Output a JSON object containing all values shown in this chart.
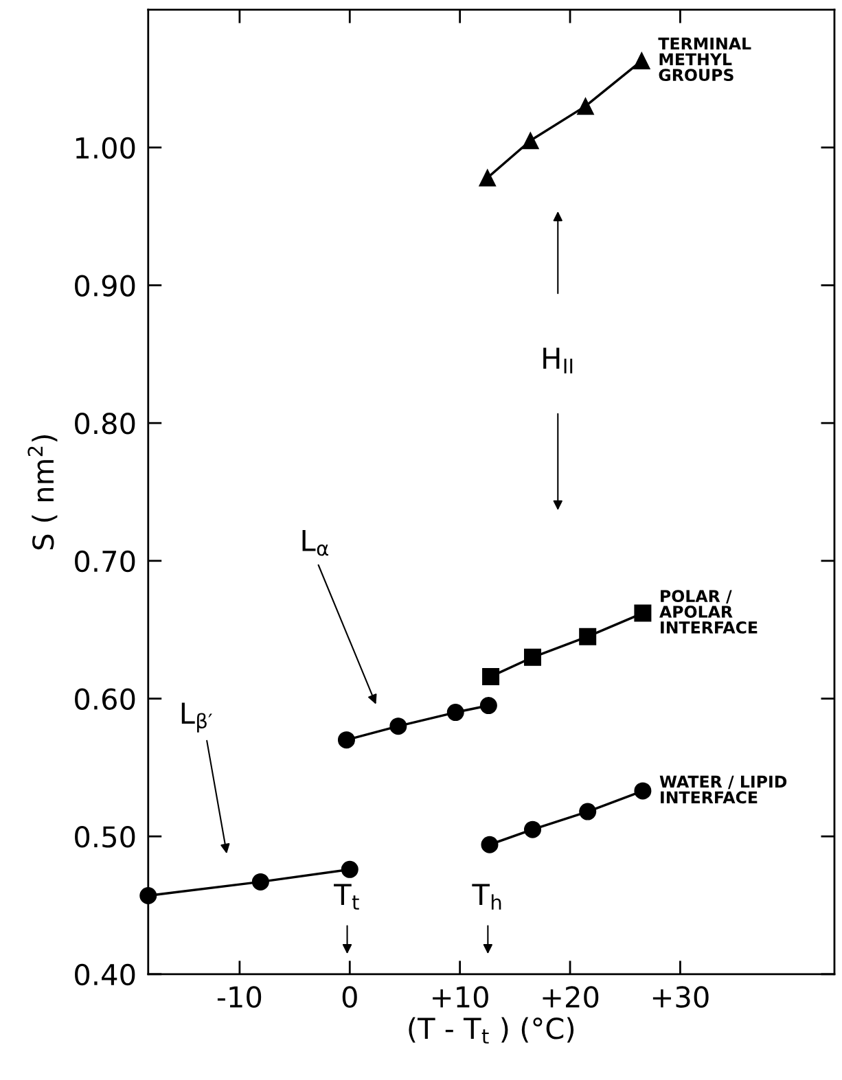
{
  "chart_data": {
    "type": "line",
    "xlabel": "(T - T$_{t}$ ) (°C)",
    "ylabel": "S ( nm$^{2}$)",
    "xlim": [
      -18.3,
      44
    ],
    "ylim": [
      0.4,
      1.1
    ],
    "xticks": [
      {
        "value": -10,
        "label": "-10"
      },
      0,
      {
        "value": 10,
        "label": "+10"
      },
      {
        "value": 20,
        "label": "+20"
      },
      {
        "value": 30,
        "label": "+30"
      }
    ],
    "yticks": [
      {
        "value": 0.4,
        "label": "0.40"
      },
      {
        "value": 0.5,
        "label": "0.50"
      },
      {
        "value": 0.6,
        "label": "0.60"
      },
      {
        "value": 0.7,
        "label": "0.70"
      },
      {
        "value": 0.8,
        "label": "0.80"
      },
      {
        "value": 0.9,
        "label": "0.90"
      },
      {
        "value": 1.0,
        "label": "1.00"
      }
    ],
    "grid": false,
    "legend": "right",
    "series": [
      {
        "color": "#000000",
        "marker": "circle",
        "x": [
          -18.3,
          -8.1,
          0
        ],
        "values": [
          0.457,
          0.467,
          0.476
        ]
      },
      {
        "color": "#000000",
        "marker": "circle",
        "x": [
          -0.3,
          4.4,
          9.6,
          12.6
        ],
        "values": [
          0.57,
          0.58,
          0.59,
          0.595
        ]
      },
      {
        "name": "POLAR /\nAPOLAR\nINTERFACE",
        "color": "#000000",
        "marker": "square",
        "x": [
          12.8,
          16.6,
          21.6,
          26.6
        ],
        "values": [
          0.616,
          0.63,
          0.645,
          0.662
        ]
      },
      {
        "name": "WATER / LIPID\nINTERFACE",
        "color": "#000000",
        "marker": "circle",
        "x": [
          12.7,
          16.6,
          21.6,
          26.6
        ],
        "values": [
          0.494,
          0.505,
          0.518,
          0.533
        ]
      },
      {
        "name": "TERMINAL\nMETHYL\nGROUPS",
        "color": "#000000",
        "marker": "triangle",
        "x": [
          12.5,
          16.4,
          21.4,
          26.5
        ],
        "values": [
          0.978,
          1.005,
          1.03,
          1.063
        ]
      }
    ],
    "annotations": [
      "L$_{β′}$",
      "L$_{α}$",
      "H$_{II}$",
      "T$_{t}$",
      "T$_{h}$"
    ]
  }
}
